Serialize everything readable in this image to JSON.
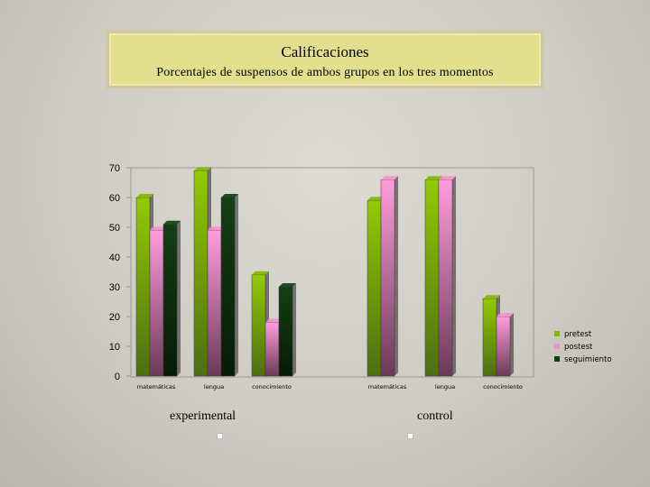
{
  "header": {
    "title": "Calificaciones",
    "subtitle": "Porcentajes de suspensos de ambos grupos en los tres momentos"
  },
  "chart_data": {
    "type": "bar",
    "title": "Calificaciones",
    "subtitle": "Porcentajes de suspensos de ambos grupos en los tres momentos",
    "ylim": [
      0,
      70
    ],
    "yticks": [
      0,
      10,
      20,
      30,
      40,
      50,
      60,
      70
    ],
    "grid": false,
    "legend_position": "bottom-right",
    "groups": [
      "experimental",
      "control"
    ],
    "categories": [
      "matemáticas",
      "lengua",
      "conocimiento",
      "matemáticas",
      "lengua",
      "conocimiento"
    ],
    "series": [
      {
        "name": "pretest",
        "color": "#7fb800",
        "values": [
          60,
          69,
          34,
          59,
          66,
          26
        ]
      },
      {
        "name": "postest",
        "color": "#f58fcf",
        "values": [
          49,
          49,
          18,
          66,
          66,
          20
        ]
      },
      {
        "name": "seguimiento",
        "color": "#0f3d0f",
        "values": [
          51,
          60,
          30,
          null,
          null,
          null
        ]
      }
    ]
  }
}
